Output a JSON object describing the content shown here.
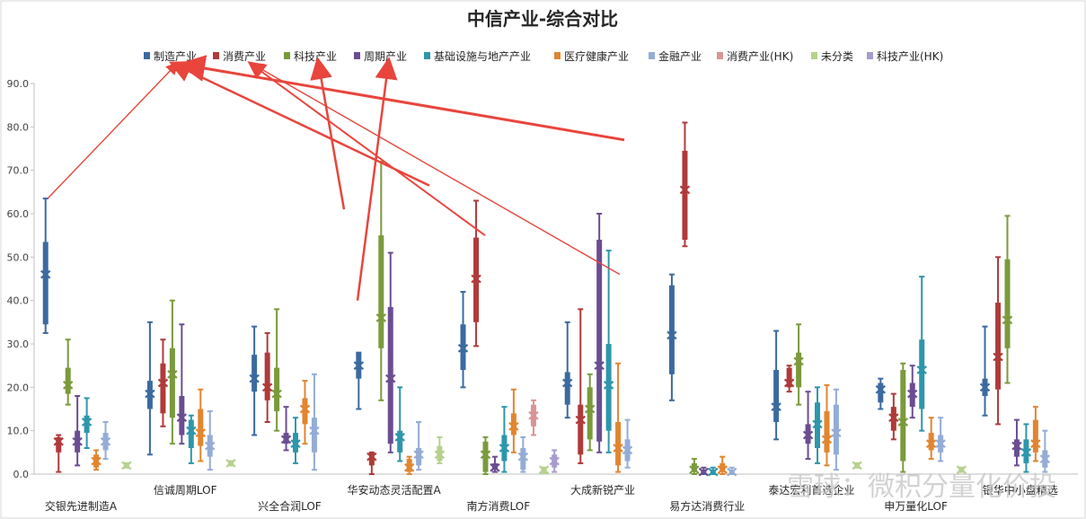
{
  "chart_data": {
    "type": "box",
    "title": "中信产业-综合对比",
    "ylim": [
      0,
      90
    ],
    "yticks": [
      "0.0",
      "10.0",
      "20.0",
      "30.0",
      "40.0",
      "50.0",
      "60.0",
      "70.0",
      "80.0",
      "90.0"
    ],
    "legend_position": "top",
    "categories": [
      "交银先进制造A",
      "信诚周期LOF",
      "兴全合润LOF",
      "华安动态灵活配置A",
      "南方消费LOF",
      "大成新锐产业",
      "易方达消费行业",
      "泰达宏利首选企业",
      "申万量化LOF",
      "银华中小盘精选"
    ],
    "series": [
      {
        "name": "制造产业",
        "color": "#3b6aa0",
        "boxes": [
          [
            32.5,
            34.5,
            46,
            53.5,
            63.5
          ],
          [
            4.5,
            15,
            18.5,
            21.5,
            35
          ],
          [
            9,
            19,
            22,
            27.5,
            34
          ],
          [
            15,
            22,
            25,
            28,
            28
          ],
          [
            20,
            24,
            29,
            34.5,
            42
          ],
          [
            13,
            16,
            21,
            23.5,
            35
          ],
          [
            17,
            23,
            32,
            43.5,
            46
          ],
          [
            8,
            12,
            15.5,
            24,
            33
          ],
          [
            15,
            16.5,
            19.5,
            21,
            22
          ],
          [
            13.5,
            18,
            20,
            22,
            34
          ]
        ]
      },
      {
        "name": "消费产业",
        "color": "#b03a3a",
        "boxes": [
          [
            0.5,
            5,
            7.5,
            8.5,
            9
          ],
          [
            11,
            14,
            21,
            25.5,
            31
          ],
          [
            12,
            17,
            20,
            28,
            32.5
          ],
          [
            0,
            2,
            4,
            5,
            5
          ],
          [
            29.5,
            35,
            45,
            54.5,
            63
          ],
          [
            2.5,
            4.5,
            12.5,
            16,
            38
          ],
          [
            52.5,
            54,
            65.5,
            74.5,
            81
          ],
          [
            19,
            20,
            21,
            24.5,
            25
          ],
          [
            8,
            10,
            13,
            15.5,
            18.5
          ],
          [
            11.5,
            19.5,
            27,
            39.5,
            50
          ]
        ]
      },
      {
        "name": "科技产业",
        "color": "#7a9a3c",
        "boxes": [
          [
            16,
            18.5,
            20.5,
            24.5,
            31
          ],
          [
            7,
            13,
            23,
            29,
            40
          ],
          [
            10,
            14.5,
            18.5,
            24.5,
            38
          ],
          [
            17,
            29,
            36,
            55,
            72
          ],
          [
            0,
            0.5,
            4.5,
            7.5,
            8.5
          ],
          [
            5.5,
            8,
            15,
            20,
            23
          ],
          [
            0,
            0.5,
            1,
            2.5,
            3.5
          ],
          [
            16,
            20,
            26,
            28,
            34.5
          ],
          [
            0.5,
            3,
            12,
            24,
            25.5
          ],
          [
            21,
            29,
            35.5,
            49.5,
            59.5
          ]
        ]
      },
      {
        "name": "周期产业",
        "color": "#6b4d92",
        "boxes": [
          [
            2,
            5,
            7.5,
            10,
            18
          ],
          [
            7,
            9,
            13,
            18,
            34.5
          ],
          [
            5.5,
            7,
            8,
            9.5,
            15.5
          ],
          [
            5,
            7,
            22,
            38.5,
            51
          ],
          [
            0.5,
            1,
            1.5,
            2.5,
            4
          ],
          [
            5,
            7.5,
            25,
            54,
            60
          ],
          [
            0,
            0.3,
            0.5,
            1,
            1.5
          ],
          [
            3.5,
            7,
            9,
            11.5,
            19
          ],
          [
            13,
            15.5,
            18.5,
            21,
            25
          ],
          [
            2,
            4,
            6.5,
            8,
            12.5
          ]
        ]
      },
      {
        "name": "基础设施与地产产业",
        "color": "#2d97ab",
        "boxes": [
          [
            6,
            9.5,
            12,
            13.5,
            17.5
          ],
          [
            2.5,
            6,
            10,
            12.5,
            13.5
          ],
          [
            2.5,
            5,
            7,
            9.5,
            13
          ],
          [
            3,
            5,
            8.5,
            10,
            20
          ],
          [
            0.5,
            3,
            6,
            9,
            15.5
          ],
          [
            5,
            10,
            20.5,
            30,
            51.5
          ],
          [
            0,
            0.2,
            0.5,
            1,
            1.5
          ],
          [
            2.5,
            6,
            11.5,
            16.5,
            20
          ],
          [
            10,
            15,
            24,
            31,
            45.5
          ],
          [
            0.5,
            2.5,
            5,
            8,
            11.5
          ]
        ]
      },
      {
        "name": "医疗健康产业",
        "color": "#e2852f",
        "boxes": [
          [
            1,
            1.5,
            3,
            4.5,
            5.5
          ],
          [
            3,
            6.5,
            9.5,
            15,
            19.5
          ],
          [
            7,
            11.5,
            15,
            17.5,
            21.5
          ],
          [
            0,
            0.5,
            1.5,
            3.5,
            4
          ],
          [
            5,
            9,
            11,
            14,
            19.5
          ],
          [
            0.5,
            2,
            6,
            12,
            25.5
          ],
          [
            0,
            0.5,
            1,
            2.5,
            4
          ],
          [
            2,
            5,
            8,
            14.5,
            20.5
          ],
          [
            3.5,
            5.5,
            7,
            9.5,
            13
          ],
          [
            3,
            5,
            7,
            12.5,
            15.5
          ]
        ]
      },
      {
        "name": "金融产业",
        "color": "#94acd6",
        "boxes": [
          [
            3.5,
            5.5,
            7.5,
            9.5,
            12
          ],
          [
            1,
            4,
            6.5,
            9,
            14.5
          ],
          [
            1,
            5,
            10,
            13,
            23
          ],
          [
            1,
            2,
            4.5,
            6,
            12
          ],
          [
            0.5,
            1,
            4,
            6,
            8.5
          ],
          [
            1.5,
            3,
            5.5,
            8,
            12.5
          ],
          [
            0,
            0.2,
            0.5,
            0.8,
            1.5
          ],
          [
            1,
            4.5,
            9.5,
            16,
            19.5
          ],
          [
            3,
            5,
            7,
            9,
            13
          ],
          [
            0.5,
            1.5,
            3.5,
            5.5,
            10
          ]
        ]
      },
      {
        "name": "消费产业(HK)",
        "color": "#d99494",
        "boxes": [
          [],
          [],
          [],
          [],
          [
            9,
            11,
            13.5,
            16,
            17
          ],
          [],
          [],
          [],
          [],
          []
        ]
      },
      {
        "name": "未分类",
        "color": "#b5d18c",
        "boxes": [
          [
            1.5,
            1.8,
            2,
            2.3,
            2.5
          ],
          [
            2,
            2.3,
            2.5,
            2.8,
            3
          ],
          [],
          [
            2.5,
            3,
            4.5,
            6.5,
            8.5
          ],
          [
            0.2,
            0.5,
            1,
            1.3,
            1.5
          ],
          [],
          [],
          [
            1.5,
            1.8,
            2,
            2.3,
            2.5
          ],
          [
            0.5,
            0.8,
            1,
            1.3,
            1.5
          ],
          []
        ]
      },
      {
        "name": "科技产业(HK)",
        "color": "#a89ccd",
        "boxes": [
          [],
          [],
          [],
          [],
          [
            0.5,
            1.5,
            3,
            4.5,
            5.5
          ],
          [],
          [],
          [],
          [],
          []
        ]
      }
    ],
    "annotation": {
      "type": "arrows",
      "color": "#e8453c"
    },
    "watermark": "雪球：微积分量化价投"
  }
}
